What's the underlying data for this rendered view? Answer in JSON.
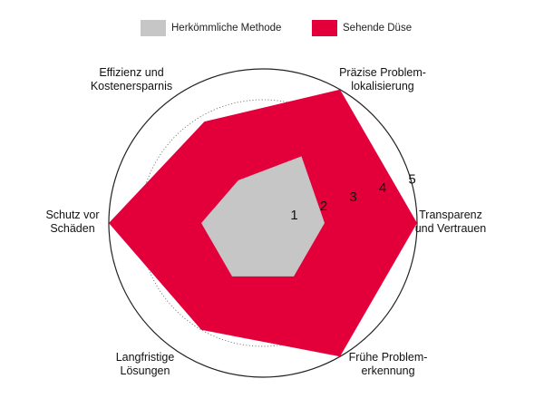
{
  "chart_data": {
    "type": "radar",
    "title": "",
    "range": [
      0,
      5
    ],
    "ticks": [
      "1",
      "2",
      "3",
      "4",
      "5"
    ],
    "axes": [
      {
        "lines": [
          "Transparenz",
          "und Vertrauen"
        ]
      },
      {
        "lines": [
          "Präzise Problem-",
          "lokalisierung"
        ]
      },
      {
        "lines": [
          "Effizienz und",
          "Kostenersparnis"
        ]
      },
      {
        "lines": [
          "Schutz vor",
          "Schäden"
        ]
      },
      {
        "lines": [
          "Langfristige",
          "Lösungen"
        ]
      },
      {
        "lines": [
          "Frühe Problem-",
          "erkennung"
        ]
      }
    ],
    "series": [
      {
        "name": "Herkömmliche Methode",
        "color": "#c6c6c6",
        "values": [
          2.0,
          2.5,
          1.6,
          2.0,
          2.0,
          2.0
        ]
      },
      {
        "name": "Sehende Düse",
        "color": "#e3003a",
        "values": [
          5.0,
          5.0,
          3.8,
          5.0,
          4.0,
          5.0
        ]
      }
    ]
  }
}
